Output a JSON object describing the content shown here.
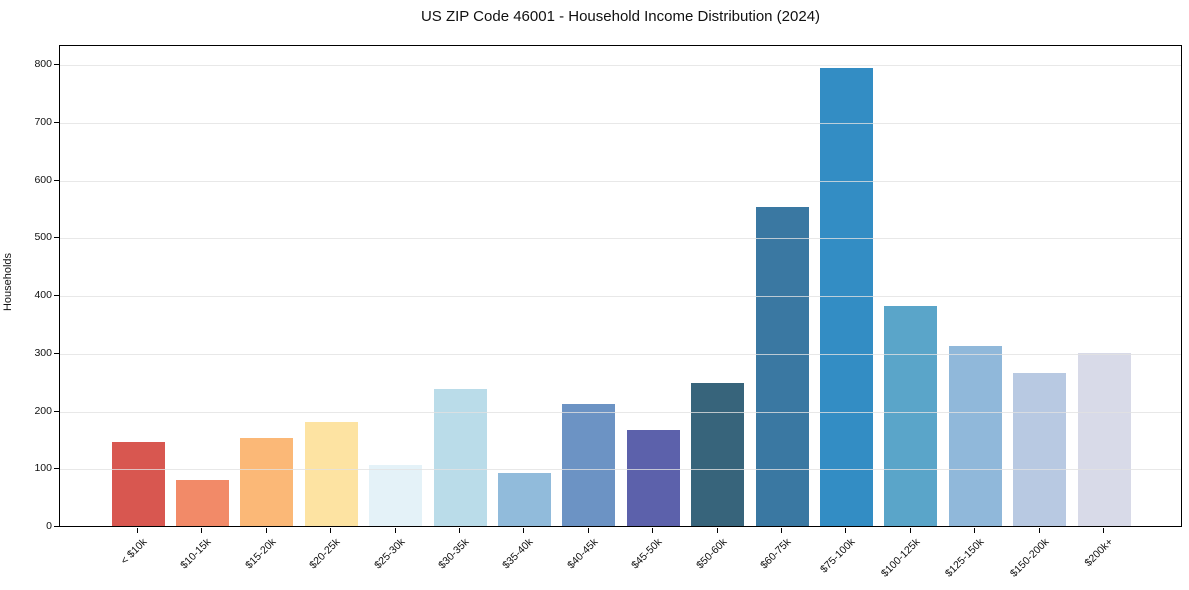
{
  "header": {
    "title": "US ZIP Code 46001 - Household Income Distribution (2024)"
  },
  "chart_data": {
    "type": "bar",
    "title": "US ZIP Code 46001 - Household Income Distribution (2024)",
    "xlabel": "",
    "ylabel": "Households",
    "ylim": [
      0,
      835
    ],
    "yticks": [
      0,
      100,
      200,
      300,
      400,
      500,
      600,
      700,
      800
    ],
    "grid": "horizontal",
    "legend": "none",
    "categories": [
      "< $10k",
      "$10-15k",
      "$15-20k",
      "$20-25k",
      "$25-30k",
      "$30-35k",
      "$35-40k",
      "$40-45k",
      "$45-50k",
      "$50-60k",
      "$60-75k",
      "$75-100k",
      "$100-125k",
      "$125-150k",
      "$150-200k",
      "$200k+"
    ],
    "values": [
      146,
      80,
      152,
      181,
      105,
      238,
      92,
      212,
      167,
      247,
      553,
      794,
      381,
      311,
      265,
      300
    ],
    "bar_colors": [
      "#d85750",
      "#f28a68",
      "#fbb877",
      "#fde3a2",
      "#e4f2f8",
      "#badce9",
      "#91bbdb",
      "#6c93c4",
      "#5c61ab",
      "#37647b",
      "#3a78a2",
      "#338dc4",
      "#5aa5c9",
      "#90b8da",
      "#b8c9e2",
      "#d8dae8"
    ],
    "axis_color": "#000000",
    "gridline_color": "#e2e2e2",
    "background_color": "#ffffff"
  }
}
